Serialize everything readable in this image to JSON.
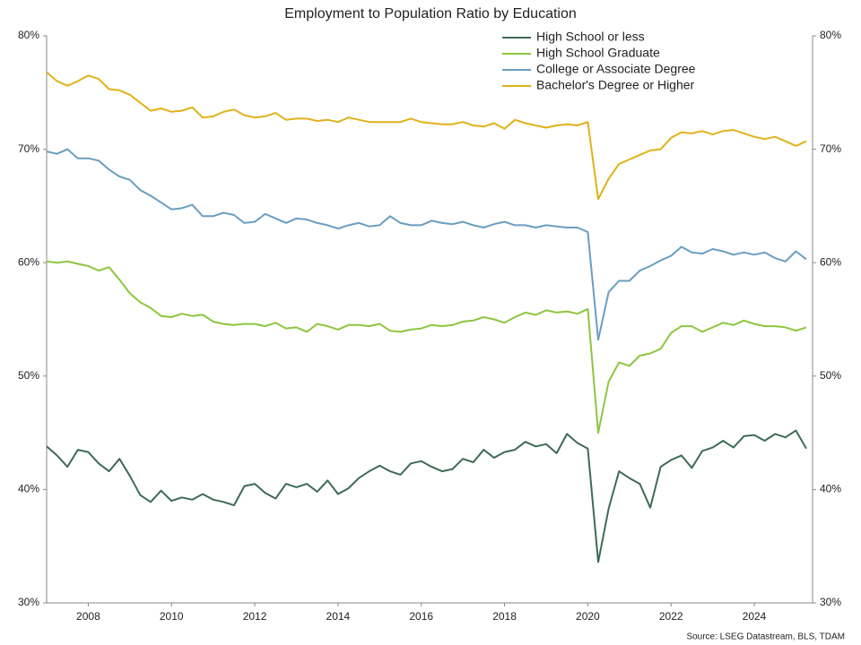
{
  "chart_data": {
    "type": "line",
    "title": "Employment to Population Ratio by Education",
    "source": "Source: LSEG Datastream, BLS, TDAM",
    "x": [
      2007,
      2007.25,
      2007.5,
      2007.75,
      2008,
      2008.25,
      2008.5,
      2008.75,
      2009,
      2009.25,
      2009.5,
      2009.75,
      2010,
      2010.25,
      2010.5,
      2010.75,
      2011,
      2011.25,
      2011.5,
      2011.75,
      2012,
      2012.25,
      2012.5,
      2012.75,
      2013,
      2013.25,
      2013.5,
      2013.75,
      2014,
      2014.25,
      2014.5,
      2014.75,
      2015,
      2015.25,
      2015.5,
      2015.75,
      2016,
      2016.25,
      2016.5,
      2016.75,
      2017,
      2017.25,
      2017.5,
      2017.75,
      2018,
      2018.25,
      2018.5,
      2018.75,
      2019,
      2019.25,
      2019.5,
      2019.75,
      2020,
      2020.25,
      2020.5,
      2020.75,
      2021,
      2021.25,
      2021.5,
      2021.75,
      2022,
      2022.25,
      2022.5,
      2022.75,
      2023,
      2023.25,
      2023.5,
      2023.75,
      2024,
      2024.25,
      2024.5,
      2024.75,
      2025,
      2025.25
    ],
    "xlim": [
      2007,
      2025.4
    ],
    "xticks": [
      2008,
      2010,
      2012,
      2014,
      2016,
      2018,
      2020,
      2022,
      2024
    ],
    "ylim": [
      30,
      80
    ],
    "yticks": [
      {
        "value": 30,
        "label": "30%"
      },
      {
        "value": 40,
        "label": "40%"
      },
      {
        "value": 50,
        "label": "50%"
      },
      {
        "value": 60,
        "label": "60%"
      },
      {
        "value": 70,
        "label": "70%"
      },
      {
        "value": 80,
        "label": "80%"
      }
    ],
    "y2lim": [
      30,
      80
    ],
    "y2ticks": [
      {
        "value": 30,
        "label": "30%"
      },
      {
        "value": 40,
        "label": "40%"
      },
      {
        "value": 50,
        "label": "50%"
      },
      {
        "value": 60,
        "label": "60%"
      },
      {
        "value": 70,
        "label": "70%"
      },
      {
        "value": 80,
        "label": "80%"
      }
    ],
    "series": [
      {
        "name": "High School or less",
        "color": "#3e6b55",
        "values": [
          43.8,
          43.0,
          42.0,
          43.5,
          43.3,
          42.3,
          41.6,
          42.7,
          41.2,
          39.5,
          38.9,
          39.9,
          39.0,
          39.3,
          39.1,
          39.6,
          39.1,
          38.9,
          38.6,
          40.3,
          40.5,
          39.7,
          39.2,
          40.5,
          40.2,
          40.5,
          39.8,
          40.8,
          39.6,
          40.1,
          41.0,
          41.6,
          42.1,
          41.6,
          41.3,
          42.3,
          42.5,
          42.0,
          41.6,
          41.8,
          42.7,
          42.4,
          43.5,
          42.8,
          43.3,
          43.5,
          44.2,
          43.8,
          44.0,
          43.2,
          44.9,
          44.1,
          43.6,
          33.6,
          38.3,
          41.6,
          41.0,
          40.5,
          38.4,
          42.0,
          42.6,
          43.0,
          41.9,
          43.4,
          43.7,
          44.3,
          43.7,
          44.7,
          44.8,
          44.3,
          44.9,
          44.6,
          45.2,
          43.6
        ]
      },
      {
        "name": "High School Graduate",
        "color": "#8dc63f",
        "values": [
          60.1,
          60.0,
          60.1,
          59.9,
          59.7,
          59.3,
          59.6,
          58.5,
          57.3,
          56.5,
          56.0,
          55.3,
          55.2,
          55.5,
          55.3,
          55.4,
          54.8,
          54.6,
          54.5,
          54.6,
          54.6,
          54.4,
          54.7,
          54.2,
          54.3,
          53.9,
          54.6,
          54.4,
          54.1,
          54.5,
          54.5,
          54.4,
          54.6,
          54.0,
          53.9,
          54.1,
          54.2,
          54.5,
          54.4,
          54.5,
          54.8,
          54.9,
          55.2,
          55.0,
          54.7,
          55.2,
          55.6,
          55.4,
          55.8,
          55.6,
          55.7,
          55.5,
          55.9,
          45.0,
          49.5,
          51.2,
          50.9,
          51.8,
          52.0,
          52.4,
          53.8,
          54.4,
          54.4,
          53.9,
          54.3,
          54.7,
          54.5,
          54.9,
          54.6,
          54.4,
          54.4,
          54.3,
          54.0,
          54.3
        ]
      },
      {
        "name": "College or Associate Degree",
        "color": "#6a9ec0",
        "values": [
          69.8,
          69.6,
          70.0,
          69.2,
          69.2,
          69.0,
          68.2,
          67.6,
          67.3,
          66.4,
          65.9,
          65.3,
          64.7,
          64.8,
          65.1,
          64.1,
          64.1,
          64.4,
          64.2,
          63.5,
          63.6,
          64.3,
          63.9,
          63.5,
          63.9,
          63.8,
          63.5,
          63.3,
          63.0,
          63.3,
          63.5,
          63.2,
          63.3,
          64.1,
          63.5,
          63.3,
          63.3,
          63.7,
          63.5,
          63.4,
          63.6,
          63.3,
          63.1,
          63.4,
          63.6,
          63.3,
          63.3,
          63.1,
          63.3,
          63.2,
          63.1,
          63.1,
          62.7,
          53.2,
          57.4,
          58.4,
          58.4,
          59.3,
          59.7,
          60.2,
          60.6,
          61.4,
          60.9,
          60.8,
          61.2,
          61.0,
          60.7,
          60.9,
          60.7,
          60.9,
          60.4,
          60.1,
          61.0,
          60.3
        ]
      },
      {
        "name": "Bachelor's Degree or Higher",
        "color": "#e0b21a",
        "values": [
          76.8,
          76.0,
          75.6,
          76.0,
          76.5,
          76.2,
          75.3,
          75.2,
          74.8,
          74.1,
          73.4,
          73.6,
          73.3,
          73.4,
          73.7,
          72.8,
          72.9,
          73.3,
          73.5,
          73.0,
          72.8,
          72.9,
          73.2,
          72.6,
          72.7,
          72.7,
          72.5,
          72.6,
          72.4,
          72.8,
          72.6,
          72.4,
          72.4,
          72.4,
          72.4,
          72.7,
          72.4,
          72.3,
          72.2,
          72.2,
          72.4,
          72.1,
          72.0,
          72.3,
          71.8,
          72.6,
          72.3,
          72.1,
          71.9,
          72.1,
          72.2,
          72.1,
          72.4,
          65.6,
          67.4,
          68.7,
          69.1,
          69.5,
          69.9,
          70.0,
          71.0,
          71.5,
          71.4,
          71.6,
          71.3,
          71.6,
          71.7,
          71.4,
          71.1,
          70.9,
          71.1,
          70.7,
          70.3,
          70.7
        ]
      }
    ]
  }
}
